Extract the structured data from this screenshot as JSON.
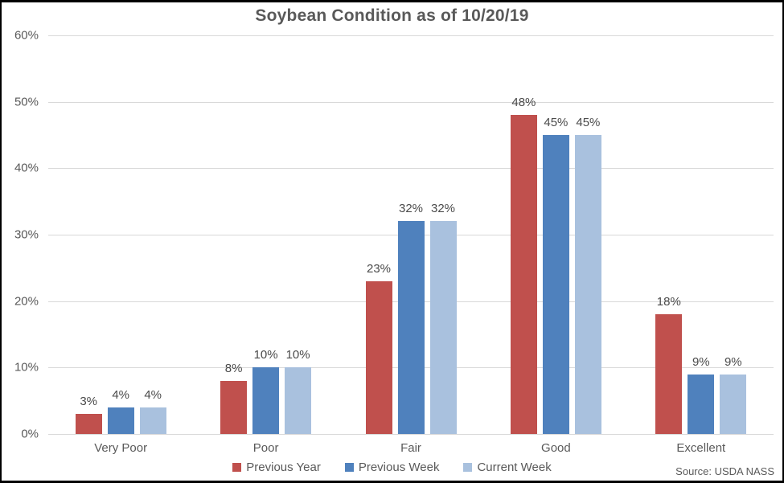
{
  "title": "Soybean Condition as of 10/20/19",
  "source": "Source: USDA NASS",
  "colors": {
    "previous_year": "#C0504D",
    "previous_week": "#4F81BD",
    "current_week": "#A9C1DE",
    "gridline": "#D9D9D9",
    "text": "#595959"
  },
  "chart_data": {
    "type": "bar",
    "title": "Soybean Condition as of 10/20/19",
    "categories": [
      "Very Poor",
      "Poor",
      "Fair",
      "Good",
      "Excellent"
    ],
    "series": [
      {
        "name": "Previous Year",
        "color": "#C0504D",
        "values": [
          3,
          8,
          23,
          48,
          18
        ]
      },
      {
        "name": "Previous Week",
        "color": "#4F81BD",
        "values": [
          4,
          10,
          32,
          45,
          9
        ]
      },
      {
        "name": "Current Week",
        "color": "#A9C1DE",
        "values": [
          4,
          10,
          32,
          45,
          9
        ]
      }
    ],
    "data_labels": [
      [
        "3%",
        "8%",
        "23%",
        "48%",
        "18%"
      ],
      [
        "4%",
        "10%",
        "32%",
        "45%",
        "9%"
      ],
      [
        "4%",
        "10%",
        "32%",
        "45%",
        "9%"
      ]
    ],
    "xlabel": "",
    "ylabel": "",
    "ylim": [
      0,
      60
    ],
    "ytick_step": 10,
    "ytick_labels": [
      "0%",
      "10%",
      "20%",
      "30%",
      "40%",
      "50%",
      "60%"
    ],
    "grid": true,
    "legend_position": "bottom",
    "annotation": "Source: USDA NASS"
  }
}
